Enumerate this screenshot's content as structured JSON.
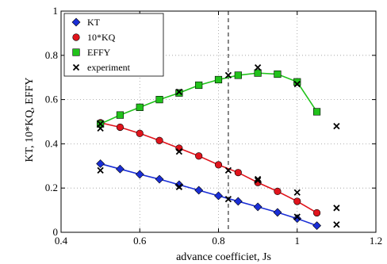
{
  "chart_data": {
    "type": "line",
    "title": "",
    "xlabel": "advance coefficiet, Js",
    "ylabel": "KT, 10*KQ, EFFY",
    "xlim": [
      0.4,
      1.2
    ],
    "ylim": [
      0,
      1
    ],
    "xticks": [
      "0.4",
      "0.6",
      "0.8",
      "1",
      "1.2"
    ],
    "yticks": [
      "0",
      "0.2",
      "0.4",
      "0.6",
      "0.8",
      "1"
    ],
    "grid": "dotted",
    "legend_position": "top-left",
    "reference_line": {
      "x": 0.825,
      "style": "dashed"
    },
    "series": [
      {
        "name": "KT",
        "marker": "diamond",
        "color": "#1a2ed6",
        "x": [
          0.5,
          0.55,
          0.6,
          0.65,
          0.7,
          0.75,
          0.8,
          0.85,
          0.9,
          0.95,
          1.0,
          1.05
        ],
        "values": [
          0.31,
          0.286,
          0.262,
          0.24,
          0.215,
          0.19,
          0.165,
          0.14,
          0.115,
          0.09,
          0.062,
          0.03
        ]
      },
      {
        "name": "10*KQ",
        "marker": "circle",
        "color": "#e0141c",
        "x": [
          0.5,
          0.55,
          0.6,
          0.65,
          0.7,
          0.75,
          0.8,
          0.85,
          0.9,
          0.95,
          1.0,
          1.05
        ],
        "values": [
          0.495,
          0.475,
          0.447,
          0.415,
          0.38,
          0.345,
          0.305,
          0.27,
          0.225,
          0.185,
          0.14,
          0.088
        ]
      },
      {
        "name": "EFFY",
        "marker": "square",
        "color": "#21c21b",
        "x": [
          0.5,
          0.55,
          0.6,
          0.65,
          0.7,
          0.75,
          0.8,
          0.85,
          0.9,
          0.95,
          1.0,
          1.05
        ],
        "values": [
          0.49,
          0.53,
          0.565,
          0.6,
          0.63,
          0.665,
          0.69,
          0.71,
          0.72,
          0.715,
          0.68,
          0.545
        ]
      },
      {
        "name": "experiment",
        "marker": "x",
        "color": "#000000",
        "x": [
          0.5,
          0.5,
          0.5,
          0.7,
          0.7,
          0.7,
          0.825,
          0.825,
          0.825,
          0.9,
          0.9,
          0.9,
          1.0,
          1.0,
          1.0,
          1.1,
          1.1,
          1.1
        ],
        "values": [
          0.28,
          0.47,
          0.49,
          0.205,
          0.365,
          0.635,
          0.15,
          0.28,
          0.71,
          0.24,
          0.235,
          0.745,
          0.18,
          0.07,
          0.67,
          0.035,
          0.11,
          0.48
        ]
      }
    ]
  }
}
